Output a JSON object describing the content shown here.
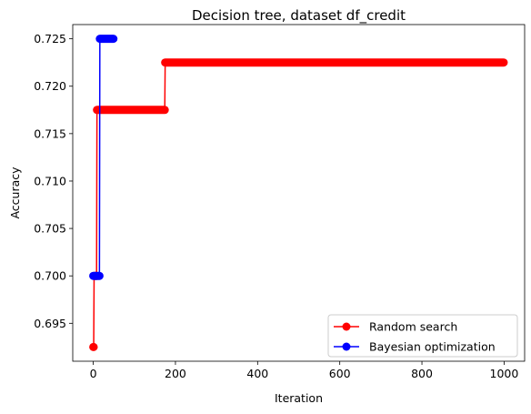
{
  "chart_data": {
    "type": "line",
    "title": "Decision tree, dataset df_credit",
    "xlabel": "Iteration",
    "ylabel": "Accuracy",
    "xlim": [
      -50,
      1050
    ],
    "ylim": [
      0.691,
      0.7265
    ],
    "xticks": [
      0,
      200,
      400,
      600,
      800,
      1000
    ],
    "xtick_labels": [
      "0",
      "200",
      "400",
      "600",
      "800",
      "1000"
    ],
    "yticks": [
      0.695,
      0.7,
      0.705,
      0.71,
      0.715,
      0.72,
      0.725
    ],
    "ytick_labels": [
      "0.695",
      "0.700",
      "0.705",
      "0.710",
      "0.715",
      "0.720",
      "0.725"
    ],
    "grid": false,
    "legend_position": "lower right",
    "series": [
      {
        "name": "Random search",
        "color": "#ff0000",
        "marker": "circle",
        "segments": [
          {
            "x_start": 0,
            "x_end": 1,
            "y": 0.6925
          },
          {
            "x_start": 2,
            "x_end": 8,
            "y": 0.7
          },
          {
            "x_start": 9,
            "x_end": 174,
            "y": 0.7175
          },
          {
            "x_start": 175,
            "x_end": 999,
            "y": 0.7225
          }
        ]
      },
      {
        "name": "Bayesian optimization",
        "color": "#0000ff",
        "marker": "circle",
        "segments": [
          {
            "x_start": 0,
            "x_end": 15,
            "y": 0.7
          },
          {
            "x_start": 16,
            "x_end": 49,
            "y": 0.725
          }
        ]
      }
    ]
  }
}
